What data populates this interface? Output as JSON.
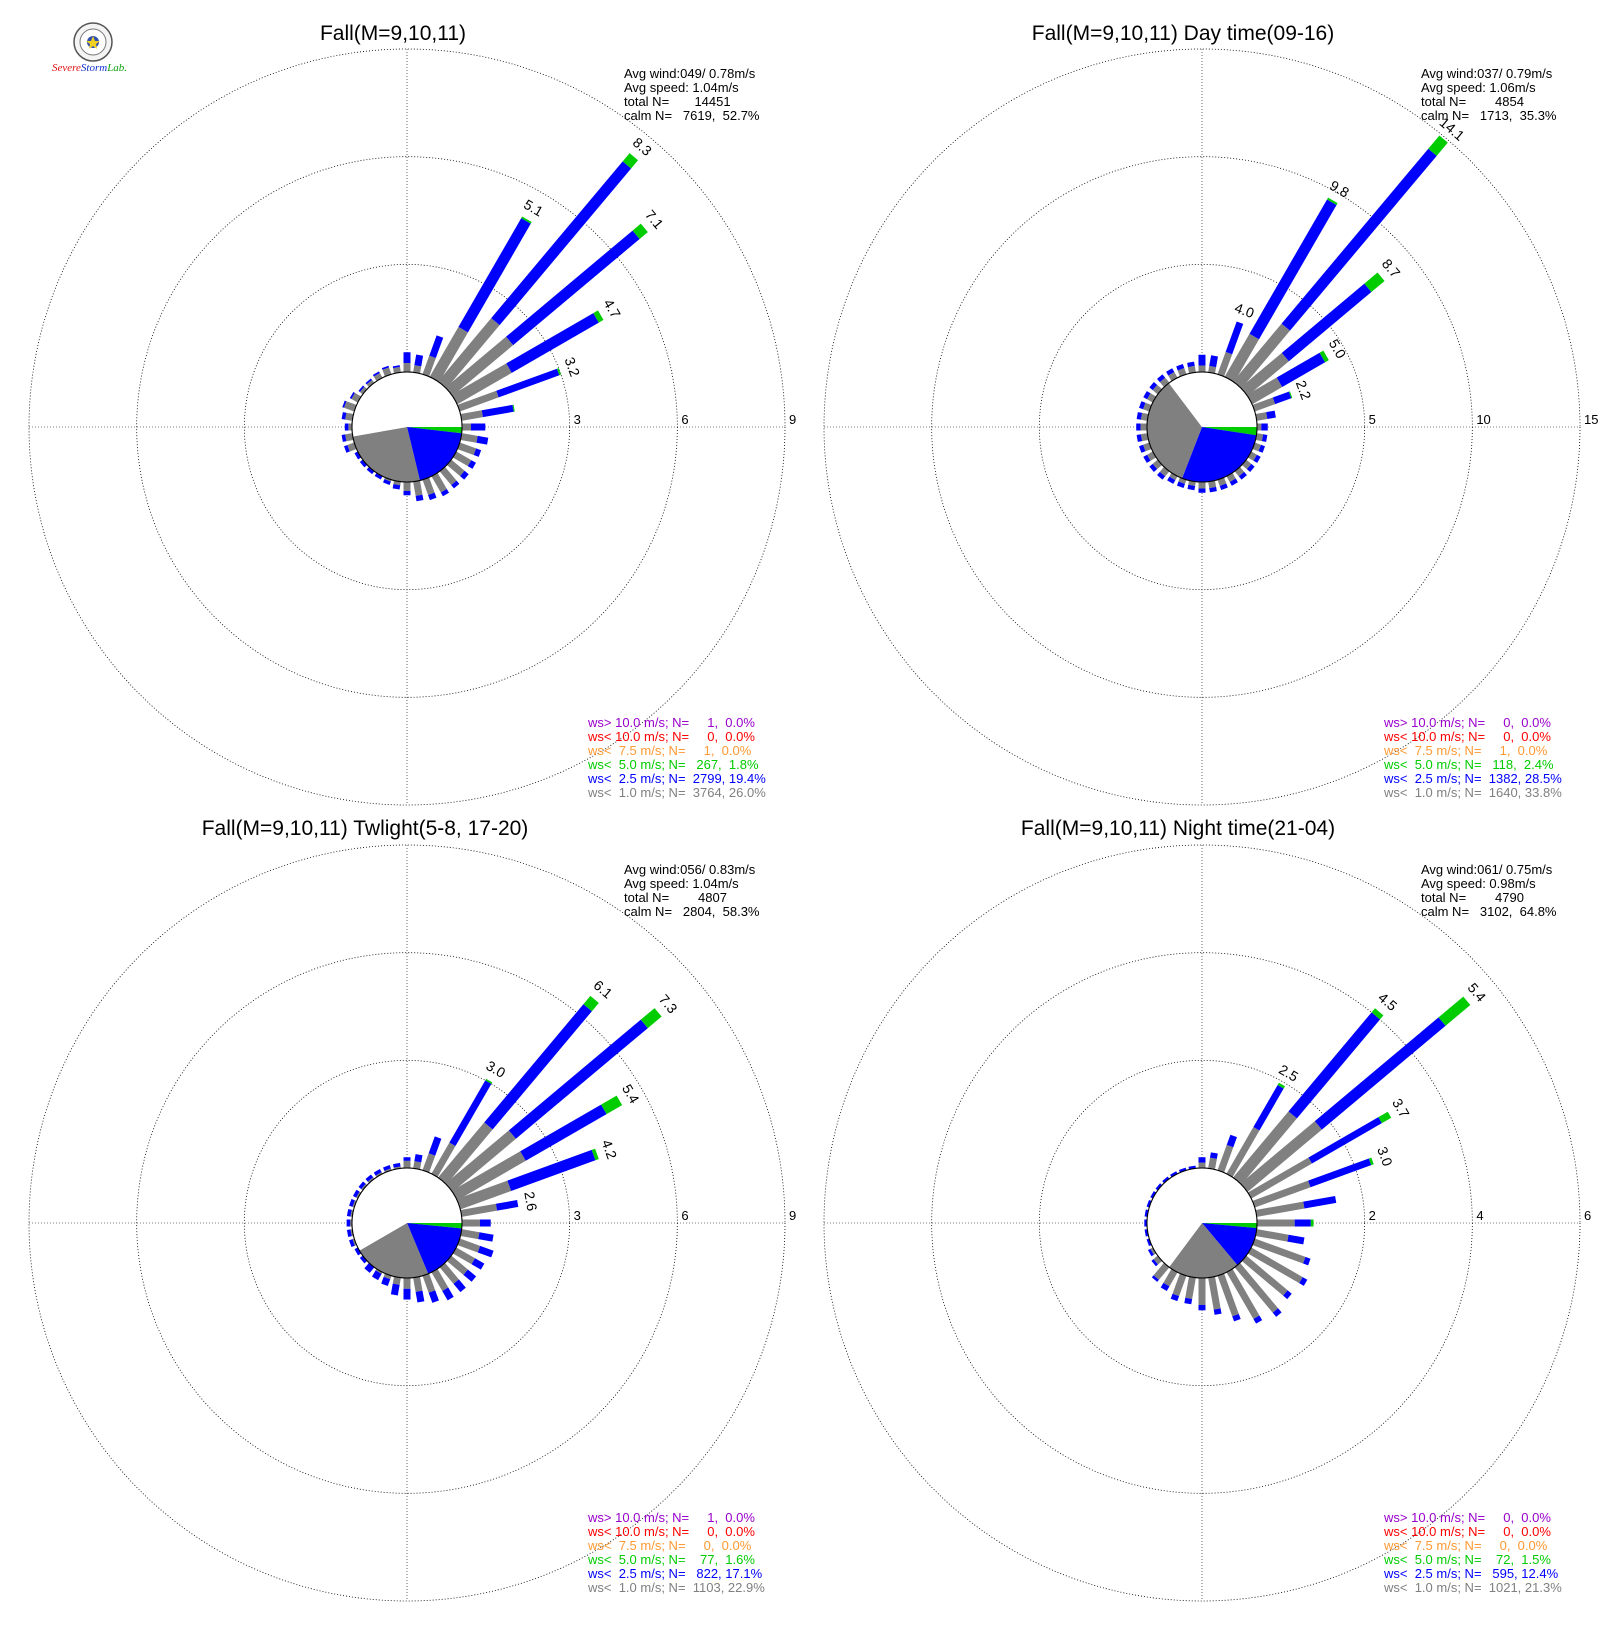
{
  "legend_colors": {
    "gt10": "#9900cc",
    "lt10": "#ff0000",
    "lt7_5": "#ff9933",
    "lt5": "#00cc00",
    "lt2_5": "#0000ff",
    "lt1": "#808080"
  },
  "logo": {
    "word1": "Severe",
    "word2": "Storm",
    "word3": "Lab."
  },
  "chart_data": [
    {
      "type": "wind-rose",
      "title": "Fall(M=9,10,11)",
      "rings": [
        3,
        6,
        9
      ],
      "rmax": 9,
      "stats": [
        "Avg wind:049/ 0.78m/s",
        "Avg speed: 1.04m/s",
        "total N=       14451",
        "calm N=   7619,  52.7%"
      ],
      "legend": [
        "ws> 10.0 m/s; N=     1,  0.0%",
        "ws< 10.0 m/s; N=     0,  0.0%",
        "ws<  7.5 m/s; N=     1,  0.0%",
        "ws<  5.0 m/s; N=   267,  1.8%",
        "ws<  2.5 m/s; N=  2799, 19.4%",
        "ws<  1.0 m/s; N=  3764, 26.0%"
      ],
      "calm_pie": [
        52.7,
        26.0,
        19.4,
        1.8
      ],
      "sectors": {
        "directions": [
          0,
          10,
          20,
          30,
          40,
          50,
          60,
          70,
          80,
          90,
          100,
          110,
          120,
          130,
          140,
          150,
          160,
          170,
          180,
          190,
          200,
          210,
          220,
          230,
          240,
          250,
          260,
          270,
          280,
          290,
          300,
          310,
          320,
          330,
          340,
          350
        ],
        "gray": [
          0.25,
          0.2,
          0.55,
          1.6,
          2.3,
          2.2,
          1.75,
          1.15,
          0.6,
          0.25,
          0.45,
          0.48,
          0.48,
          0.48,
          0.5,
          0.52,
          0.45,
          0.4,
          0.25,
          0.1,
          0.05,
          0,
          0,
          0,
          0,
          0.2,
          0.2,
          0.1,
          0.2,
          0.3,
          0.2,
          0.1,
          0.1,
          0.15,
          0.2,
          0.15
        ],
        "blue": [
          0.3,
          0.3,
          0.6,
          3.5,
          5.7,
          4.6,
          2.8,
          1.8,
          0.87,
          0.4,
          0.3,
          0.15,
          0.15,
          0.15,
          0.12,
          0.12,
          0.15,
          0.15,
          0.12,
          0.12,
          0.1,
          0.1,
          0.1,
          0.1,
          0.1,
          0.1,
          0.1,
          0.1,
          0.1,
          0.05,
          0.05,
          0.05,
          0.05,
          0.05,
          0.05,
          0.05
        ],
        "green": [
          0,
          0,
          0,
          0.05,
          0.3,
          0.3,
          0.15,
          0.05,
          0.03,
          0,
          0,
          0,
          0,
          0,
          0,
          0,
          0,
          0,
          0,
          0,
          0,
          0,
          0,
          0,
          0,
          0,
          0,
          0,
          0,
          0,
          0,
          0,
          0,
          0,
          0,
          0
        ],
        "labels": [
          {
            "dir": 30,
            "value": "5.1"
          },
          {
            "dir": 40,
            "value": "8.3"
          },
          {
            "dir": 50,
            "value": "7.1"
          },
          {
            "dir": 60,
            "value": "4.7"
          },
          {
            "dir": 70,
            "value": "3.2"
          }
        ]
      }
    },
    {
      "type": "wind-rose",
      "title": "Fall(M=9,10,11) Day time(09-16)",
      "rings": [
        5,
        10,
        15
      ],
      "rmax": 15,
      "stats": [
        "Avg wind:037/ 0.79m/s",
        "Avg speed: 1.06m/s",
        "total N=        4854",
        "calm N=   1713,  35.3%"
      ],
      "legend": [
        "ws> 10.0 m/s; N=     0,  0.0%",
        "ws< 10.0 m/s; N=     0,  0.0%",
        "ws<  7.5 m/s; N=     1,  0.0%",
        "ws<  5.0 m/s; N=   118,  2.4%",
        "ws<  2.5 m/s; N=  1382, 28.5%",
        "ws<  1.0 m/s; N=  1640, 33.8%"
      ],
      "calm_pie": [
        35.3,
        33.8,
        28.5,
        2.4
      ],
      "sectors": {
        "directions": [
          0,
          10,
          20,
          30,
          40,
          50,
          60,
          70,
          80,
          90,
          100,
          110,
          120,
          130,
          140,
          150,
          160,
          170,
          180,
          190,
          200,
          210,
          220,
          230,
          240,
          250,
          260,
          270,
          280,
          290,
          300,
          310,
          320,
          330,
          340,
          350
        ],
        "gray": [
          0.3,
          0.3,
          1.1,
          2.3,
          3.5,
          2.5,
          1.6,
          1.0,
          0.5,
          0.2,
          0.3,
          0.3,
          0.3,
          0.3,
          0.3,
          0.3,
          0.3,
          0.3,
          0.3,
          0.2,
          0.2,
          0.2,
          0.3,
          0.3,
          0.3,
          0.3,
          0.3,
          0.3,
          0.3,
          0.3,
          0.3,
          0.3,
          0.3,
          0.3,
          0.3,
          0.3
        ],
        "blue": [
          0.5,
          0.5,
          1.5,
          7.2,
          10.6,
          5.0,
          2.3,
          0.8,
          0.4,
          0.3,
          0.2,
          0.2,
          0.2,
          0.2,
          0.2,
          0.2,
          0.2,
          0.2,
          0.2,
          0.2,
          0.2,
          0.2,
          0.2,
          0.2,
          0.2,
          0.2,
          0.2,
          0.2,
          0.2,
          0.2,
          0.2,
          0.2,
          0.2,
          0.2,
          0.2,
          0.2
        ],
        "green": [
          0,
          0,
          0,
          0.1,
          0.8,
          0.8,
          0.2,
          0.05,
          0,
          0,
          0,
          0,
          0,
          0,
          0,
          0,
          0,
          0,
          0,
          0,
          0,
          0,
          0,
          0,
          0,
          0,
          0,
          0,
          0,
          0,
          0,
          0,
          0,
          0,
          0,
          0
        ],
        "labels": [
          {
            "dir": 20,
            "value": "4.0"
          },
          {
            "dir": 30,
            "value": "9.8"
          },
          {
            "dir": 40,
            "value": "14.1"
          },
          {
            "dir": 50,
            "value": "8.7"
          },
          {
            "dir": 60,
            "value": "5.0"
          },
          {
            "dir": 70,
            "value": "2.2"
          }
        ]
      }
    },
    {
      "type": "wind-rose",
      "title": "Fall(M=9,10,11) Twlight(5-8, 17-20)",
      "rings": [
        3,
        6,
        9
      ],
      "rmax": 9,
      "stats": [
        "Avg wind:056/ 0.83m/s",
        "Avg speed: 1.04m/s",
        "total N=        4807",
        "calm N=   2804,  58.3%"
      ],
      "legend": [
        "ws> 10.0 m/s; N=     1,  0.0%",
        "ws< 10.0 m/s; N=     0,  0.0%",
        "ws<  7.5 m/s; N=     0,  0.0%",
        "ws<  5.0 m/s; N=    77,  1.6%",
        "ws<  2.5 m/s; N=   822, 17.1%",
        "ws<  1.0 m/s; N=  1103, 22.9%"
      ],
      "calm_pie": [
        58.3,
        22.9,
        17.1,
        1.6
      ],
      "sectors": {
        "directions": [
          0,
          10,
          20,
          30,
          40,
          50,
          60,
          70,
          80,
          90,
          100,
          110,
          120,
          130,
          140,
          150,
          160,
          170,
          180,
          190,
          200,
          210,
          220,
          230,
          240,
          250,
          260,
          270,
          280,
          290,
          300,
          310,
          320,
          330,
          340,
          350
        ],
        "gray": [
          0.2,
          0.2,
          0.5,
          1.0,
          2.0,
          2.3,
          2.2,
          1.5,
          1.0,
          0.5,
          0.5,
          0.6,
          0.6,
          0.6,
          0.6,
          0.6,
          0.5,
          0.4,
          0.3,
          0.2,
          0.1,
          0.05,
          0,
          0,
          0,
          0.05,
          0.05,
          0.05,
          0.05,
          0.05,
          0.05,
          0.05,
          0.05,
          0.05,
          0.05,
          0.05
        ],
        "blue": [
          0.1,
          0.2,
          0.5,
          2.0,
          4.3,
          4.8,
          2.6,
          2.5,
          0.6,
          0.3,
          0.4,
          0.4,
          0.3,
          0.3,
          0.3,
          0.3,
          0.3,
          0.3,
          0.3,
          0.3,
          0.2,
          0.2,
          0.2,
          0.1,
          0.1,
          0.1,
          0.1,
          0.1,
          0.1,
          0.1,
          0.1,
          0.1,
          0.1,
          0.1,
          0.1,
          0.1
        ],
        "green": [
          0,
          0,
          0,
          0.05,
          0.3,
          0.5,
          0.5,
          0.1,
          0,
          0,
          0,
          0,
          0,
          0,
          0,
          0,
          0,
          0,
          0,
          0,
          0,
          0,
          0,
          0,
          0,
          0,
          0,
          0,
          0,
          0,
          0,
          0,
          0,
          0,
          0,
          0
        ],
        "labels": [
          {
            "dir": 30,
            "value": "3.0"
          },
          {
            "dir": 40,
            "value": "6.1"
          },
          {
            "dir": 50,
            "value": "7.3"
          },
          {
            "dir": 60,
            "value": "5.4"
          },
          {
            "dir": 70,
            "value": "4.2"
          },
          {
            "dir": 80,
            "value": "2.6"
          }
        ]
      }
    },
    {
      "type": "wind-rose",
      "title": "Fall(M=9,10,11) Night time(21-04)",
      "rings": [
        2,
        4,
        6
      ],
      "rmax": 6,
      "stats": [
        "Avg wind:061/ 0.75m/s",
        "Avg speed: 0.98m/s",
        "total N=        4790",
        "calm N=   3102,  64.8%"
      ],
      "legend": [
        "ws> 10.0 m/s; N=     0,  0.0%",
        "ws< 10.0 m/s; N=     0,  0.0%",
        "ws<  7.5 m/s; N=     0,  0.0%",
        "ws<  5.0 m/s; N=    72,  1.5%",
        "ws<  2.5 m/s; N=   595, 12.4%",
        "ws<  1.0 m/s; N=  1021, 21.3%"
      ],
      "calm_pie": [
        64.8,
        21.3,
        12.4,
        1.5
      ],
      "sectors": {
        "directions": [
          0,
          10,
          20,
          30,
          40,
          50,
          60,
          70,
          80,
          90,
          100,
          110,
          120,
          130,
          140,
          150,
          160,
          170,
          180,
          190,
          200,
          210,
          220,
          230,
          240,
          250,
          260,
          270,
          280,
          290,
          300,
          310,
          320,
          330,
          340,
          350
        ],
        "gray": [
          0.1,
          0.2,
          0.5,
          1.0,
          1.6,
          1.8,
          1.3,
          1.1,
          0.9,
          0.7,
          0.6,
          1.0,
          1.1,
          1.0,
          1.1,
          1.0,
          0.8,
          0.6,
          0.5,
          0.4,
          0.4,
          0.3,
          0.3,
          0.1,
          0.05,
          0,
          0,
          0,
          0,
          0,
          0,
          0,
          0,
          0,
          0,
          0
        ],
        "blue": [
          0.1,
          0.1,
          0.2,
          0.9,
          2.4,
          3.0,
          1.5,
          1.2,
          0.6,
          0.3,
          0.3,
          0.1,
          0.1,
          0.1,
          0.1,
          0.1,
          0.1,
          0.1,
          0.1,
          0.1,
          0.1,
          0.1,
          0.05,
          0.05,
          0.05,
          0.05,
          0.05,
          0.05,
          0.05,
          0.05,
          0.05,
          0.05,
          0.05,
          0.05,
          0.05,
          0.05
        ],
        "green": [
          0,
          0,
          0,
          0.05,
          0.1,
          0.6,
          0.2,
          0.05,
          0,
          0.05,
          0,
          0,
          0,
          0,
          0,
          0,
          0,
          0,
          0,
          0,
          0,
          0,
          0,
          0,
          0,
          0,
          0,
          0,
          0,
          0,
          0,
          0,
          0,
          0,
          0,
          0
        ],
        "labels": [
          {
            "dir": 30,
            "value": "2.5"
          },
          {
            "dir": 40,
            "value": "4.5"
          },
          {
            "dir": 50,
            "value": "5.4"
          },
          {
            "dir": 60,
            "value": "3.7"
          },
          {
            "dir": 70,
            "value": "3.0"
          }
        ]
      }
    }
  ]
}
